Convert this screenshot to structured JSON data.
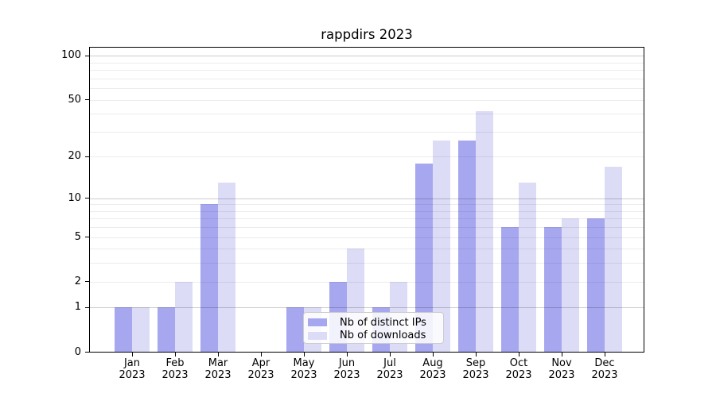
{
  "title": "rappdirs 2023",
  "legend": {
    "items": [
      {
        "label": "Nb of distinct IPs",
        "color": "#a7a7f0"
      },
      {
        "label": "Nb of downloads",
        "color": "#dcdcf7"
      }
    ]
  },
  "chart_data": {
    "type": "bar",
    "title": "rappdirs 2023",
    "categories": [
      "Jan 2023",
      "Feb 2023",
      "Mar 2023",
      "Apr 2023",
      "May 2023",
      "Jun 2023",
      "Jul 2023",
      "Aug 2023",
      "Sep 2023",
      "Oct 2023",
      "Nov 2023",
      "Dec 2023"
    ],
    "months": [
      "Jan",
      "Feb",
      "Mar",
      "Apr",
      "May",
      "Jun",
      "Jul",
      "Aug",
      "Sep",
      "Oct",
      "Nov",
      "Dec"
    ],
    "year": "2023",
    "series": [
      {
        "name": "Nb of distinct IPs",
        "color": "#a7a7f0",
        "values": [
          1,
          1,
          9,
          0,
          1,
          2,
          1,
          18,
          26,
          6,
          6,
          7
        ]
      },
      {
        "name": "Nb of downloads",
        "color": "#dcdcf7",
        "values": [
          1,
          2,
          13,
          0,
          1,
          4,
          2,
          26,
          42,
          13,
          7,
          17
        ]
      }
    ],
    "xlabel": "",
    "ylabel": "",
    "yscale": "log10(1+x)",
    "ylim": [
      0,
      116
    ],
    "yticks": [
      0,
      1,
      2,
      5,
      10,
      20,
      50,
      100
    ],
    "gridlines": {
      "major": [
        1,
        10,
        100
      ],
      "minor": [
        2,
        3,
        4,
        5,
        6,
        7,
        8,
        9,
        20,
        30,
        40,
        50,
        60,
        70,
        80,
        90
      ]
    },
    "grid": "horizontal gridlines drawn over bars",
    "legend_position": "inside plot, lower center"
  }
}
